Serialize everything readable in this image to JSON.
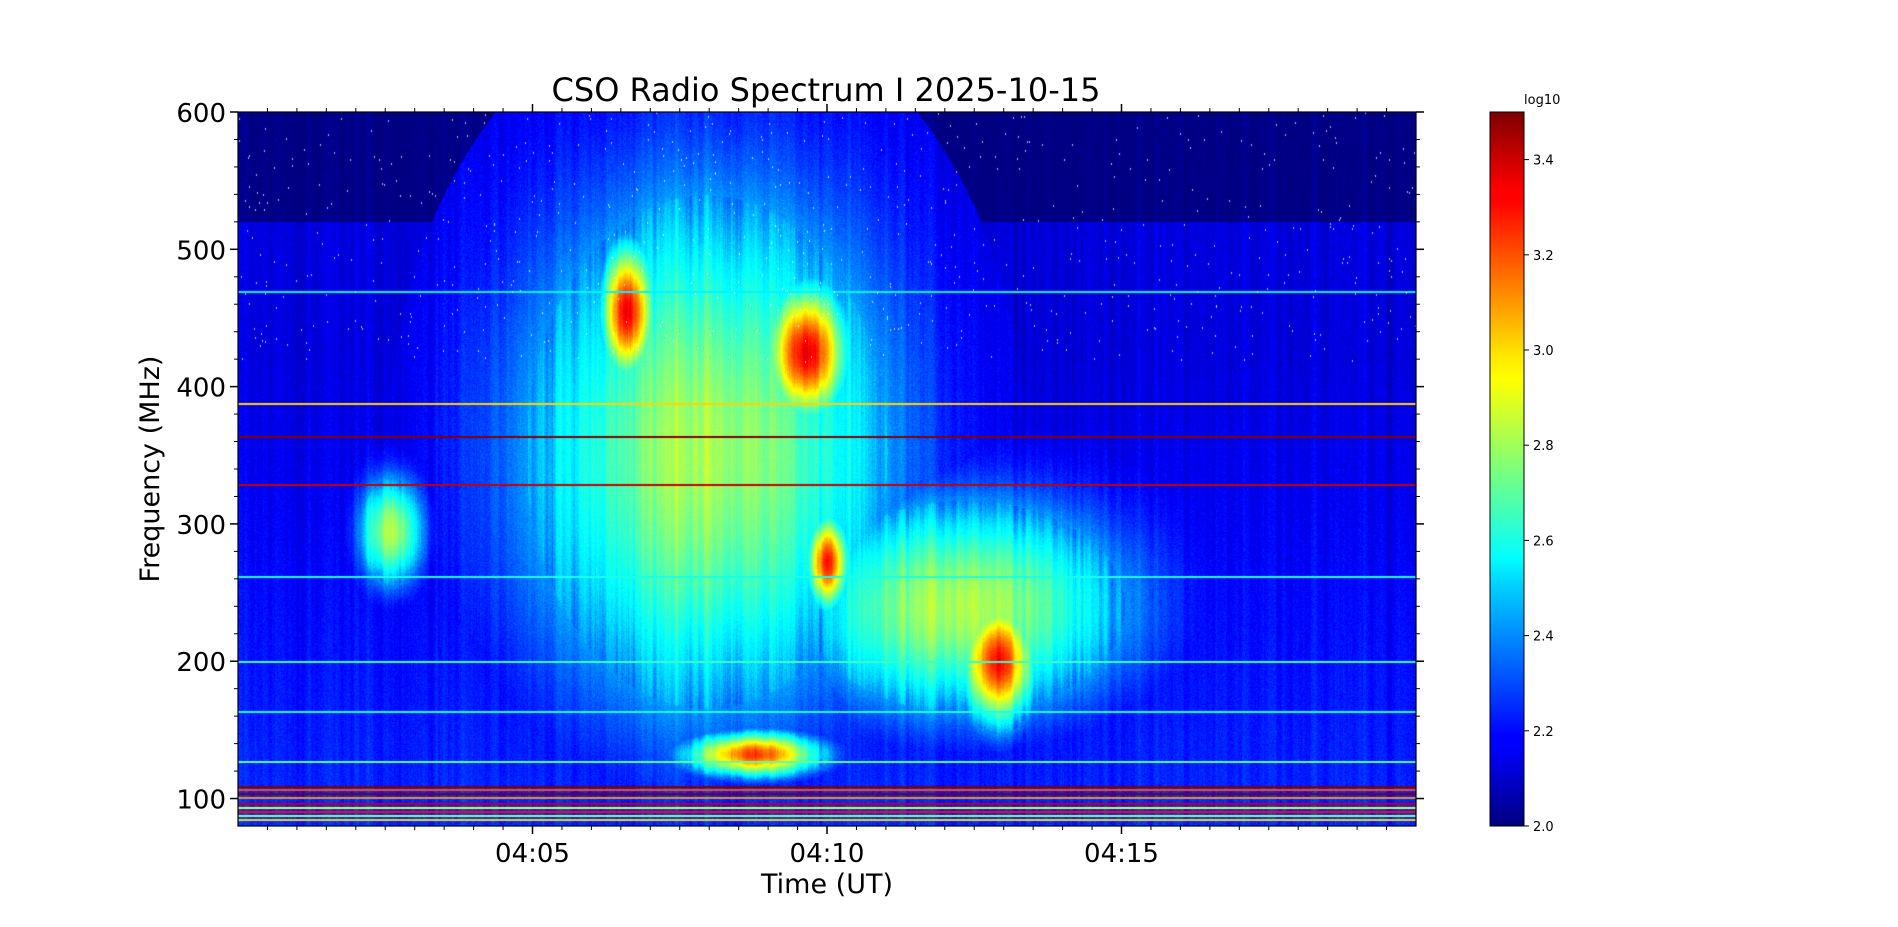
{
  "chart_data": {
    "type": "heatmap",
    "title": "CSO Radio Spectrum I 2025-10-15",
    "xlabel": "Time (UT)",
    "ylabel": "Frequency (MHz)",
    "x_unit": "minutes after 04:00 UT",
    "xlim": [
      0,
      20
    ],
    "ylim": [
      80,
      600
    ],
    "x_ticks": [
      {
        "value": 5,
        "label": "04:05"
      },
      {
        "value": 10,
        "label": "04:10"
      },
      {
        "value": 15,
        "label": "04:15"
      }
    ],
    "y_ticks": [
      {
        "value": 100,
        "label": "100"
      },
      {
        "value": 200,
        "label": "200"
      },
      {
        "value": 300,
        "label": "300"
      },
      {
        "value": 400,
        "label": "400"
      },
      {
        "value": 500,
        "label": "500"
      },
      {
        "value": 600,
        "label": "600"
      }
    ],
    "colorbar": {
      "label": "log10",
      "colormap": "jet",
      "range": [
        2.0,
        3.5
      ],
      "ticks": [
        {
          "value": 2.0,
          "label": "2.0"
        },
        {
          "value": 2.2,
          "label": "2.2"
        },
        {
          "value": 2.4,
          "label": "2.4"
        },
        {
          "value": 2.6,
          "label": "2.6"
        },
        {
          "value": 2.8,
          "label": "2.8"
        },
        {
          "value": 3.0,
          "label": "3.0"
        },
        {
          "value": 3.2,
          "label": "3.2"
        },
        {
          "value": 3.4,
          "label": "3.4"
        }
      ]
    },
    "background_level": 2.1,
    "features": [
      {
        "name": "broadband emission envelope",
        "t": [
          4.3,
          11.6
        ],
        "f": [
          130,
          575
        ],
        "peak": 2.72
      },
      {
        "name": "lower broadband envelope",
        "t": [
          9.2,
          15.5
        ],
        "f": [
          150,
          330
        ],
        "peak": 2.75
      },
      {
        "name": "type III burst group A",
        "t": [
          6.1,
          7.1
        ],
        "f": [
          400,
          510
        ],
        "peak": 3.35
      },
      {
        "name": "type III burst group B",
        "t": [
          8.9,
          10.4
        ],
        "f": [
          370,
          480
        ],
        "peak": 3.35
      },
      {
        "name": "burst C",
        "t": [
          9.6,
          10.4
        ],
        "f": [
          235,
          310
        ],
        "peak": 3.25
      },
      {
        "name": "burst D",
        "t": [
          12.2,
          13.6
        ],
        "f": [
          150,
          250
        ],
        "peak": 3.3
      },
      {
        "name": "drifting low-frequency burst",
        "t": [
          7.5,
          10.0
        ],
        "f": [
          115,
          150
        ],
        "peak": 3.2
      },
      {
        "name": "early weak emission",
        "t": [
          2.0,
          3.2
        ],
        "f": [
          250,
          340
        ],
        "peak": 2.75
      }
    ],
    "narrowband_interference_mhz": [
      {
        "f": 85,
        "level": 3.0
      },
      {
        "f": 88,
        "level": 2.8
      },
      {
        "f": 91,
        "level": 3.3
      },
      {
        "f": 94,
        "level": 2.9
      },
      {
        "f": 97,
        "level": 3.4
      },
      {
        "f": 101,
        "level": 3.1
      },
      {
        "f": 104,
        "level": 3.5
      },
      {
        "f": 107,
        "level": 3.2
      },
      {
        "f": 109,
        "level": 3.5
      },
      {
        "f": 127,
        "level": 2.7
      },
      {
        "f": 164,
        "level": 2.6
      },
      {
        "f": 200,
        "level": 2.65
      },
      {
        "f": 262,
        "level": 2.6
      },
      {
        "f": 329,
        "level": 3.4
      },
      {
        "f": 364,
        "level": 3.5
      },
      {
        "f": 388,
        "level": 3.0
      },
      {
        "f": 470,
        "level": 2.55
      }
    ]
  }
}
